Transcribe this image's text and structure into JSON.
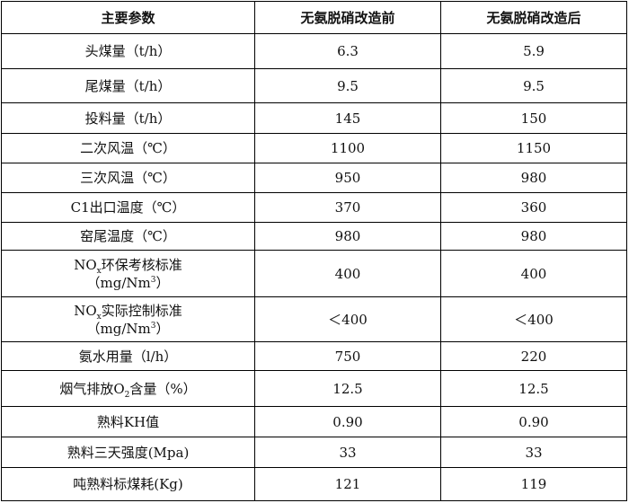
{
  "headers": [
    "主要参数",
    "无氨脱硝改造前",
    "无氨脱硝改造后"
  ],
  "rows": [
    {
      "param": "头煤量（t/h）",
      "before": "6.3",
      "after": "5.9"
    },
    {
      "param": "尾煤量（t/h）",
      "before": "9.5",
      "after": "9.5"
    },
    {
      "param": "投料量（t/h）",
      "before": "145",
      "after": "150"
    },
    {
      "param": "二次风温（℃）",
      "before": "1100",
      "after": "1150"
    },
    {
      "param": "三次风温（℃）",
      "before": "950",
      "after": "980"
    },
    {
      "param": "C1出口温度（℃）",
      "before": "370",
      "after": "360"
    },
    {
      "param": "窑尾温度（℃）",
      "before": "980",
      "after": "980"
    },
    {
      "param_pre": "NO",
      "param_sub": "x",
      "param_post": "环保考核标准",
      "param_line2_pre": "（mg/Nm",
      "param_line2_sup": "3",
      "param_line2_post": "）",
      "before": "400",
      "after": "400"
    },
    {
      "param_pre": "NO",
      "param_sub": "x",
      "param_post": "实际控制标准",
      "param_line2_pre": "（mg/Nm",
      "param_line2_sup": "3",
      "param_line2_post": "）",
      "before": "＜400",
      "after": "＜400"
    },
    {
      "param": "氨水用量（l/h）",
      "before": "750",
      "after": "220"
    },
    {
      "param_pre": "烟气排放O",
      "param_sub": "2",
      "param_post": "含量（%）",
      "before": "12.5",
      "after": "12.5"
    },
    {
      "param": "熟料KH值",
      "before": "0.90",
      "after": "0.90"
    },
    {
      "param": "熟料三天强度(Mpa)",
      "before": "33",
      "after": "33"
    },
    {
      "param": "吨熟料标煤耗(Kg)",
      "before": "121",
      "after": "119"
    }
  ]
}
